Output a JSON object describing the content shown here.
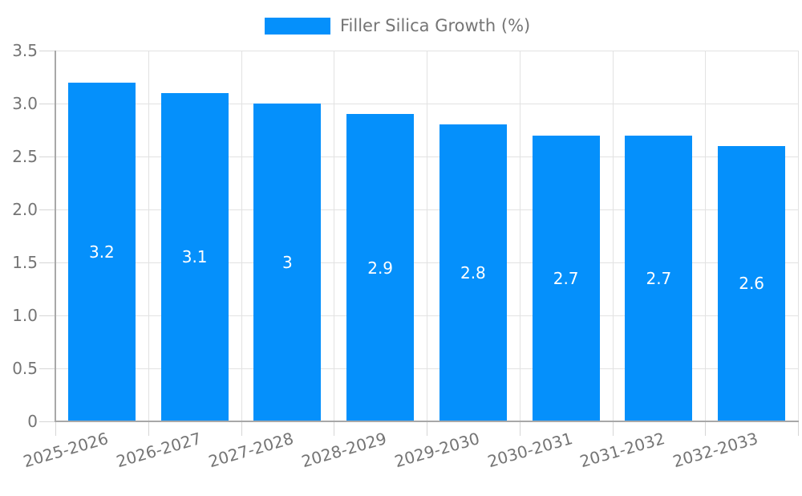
{
  "legend": {
    "label": "Filler Silica Growth (%)"
  },
  "chart_data": {
    "type": "bar",
    "title": "Filler Silica Growth (%)",
    "categories": [
      "2025-2026",
      "2026-2027",
      "2027-2028",
      "2028-2029",
      "2029-2030",
      "2030-2031",
      "2031-2032",
      "2032-2033"
    ],
    "values": [
      3.2,
      3.1,
      3,
      2.9,
      2.8,
      2.7,
      2.7,
      2.6
    ],
    "value_labels": [
      "3.2",
      "3.1",
      "3",
      "2.9",
      "2.8",
      "2.7",
      "2.7",
      "2.6"
    ],
    "xlabel": "",
    "ylabel": "",
    "ylim": [
      0,
      3.5
    ],
    "yticks": [
      "0",
      "0.5",
      "1.0",
      "1.5",
      "2.0",
      "2.5",
      "3.0",
      "3.5"
    ],
    "grid": true,
    "legend_position": "top-center",
    "value_label_position": "inside-middle",
    "colors": {
      "bar": "#0590fb",
      "text": "#757575",
      "grid": "#e2e2e2",
      "axis": "#a8a8a8",
      "tick": "#d6d6d6",
      "value_label": "#ffffff",
      "background": "#ffffff"
    }
  }
}
